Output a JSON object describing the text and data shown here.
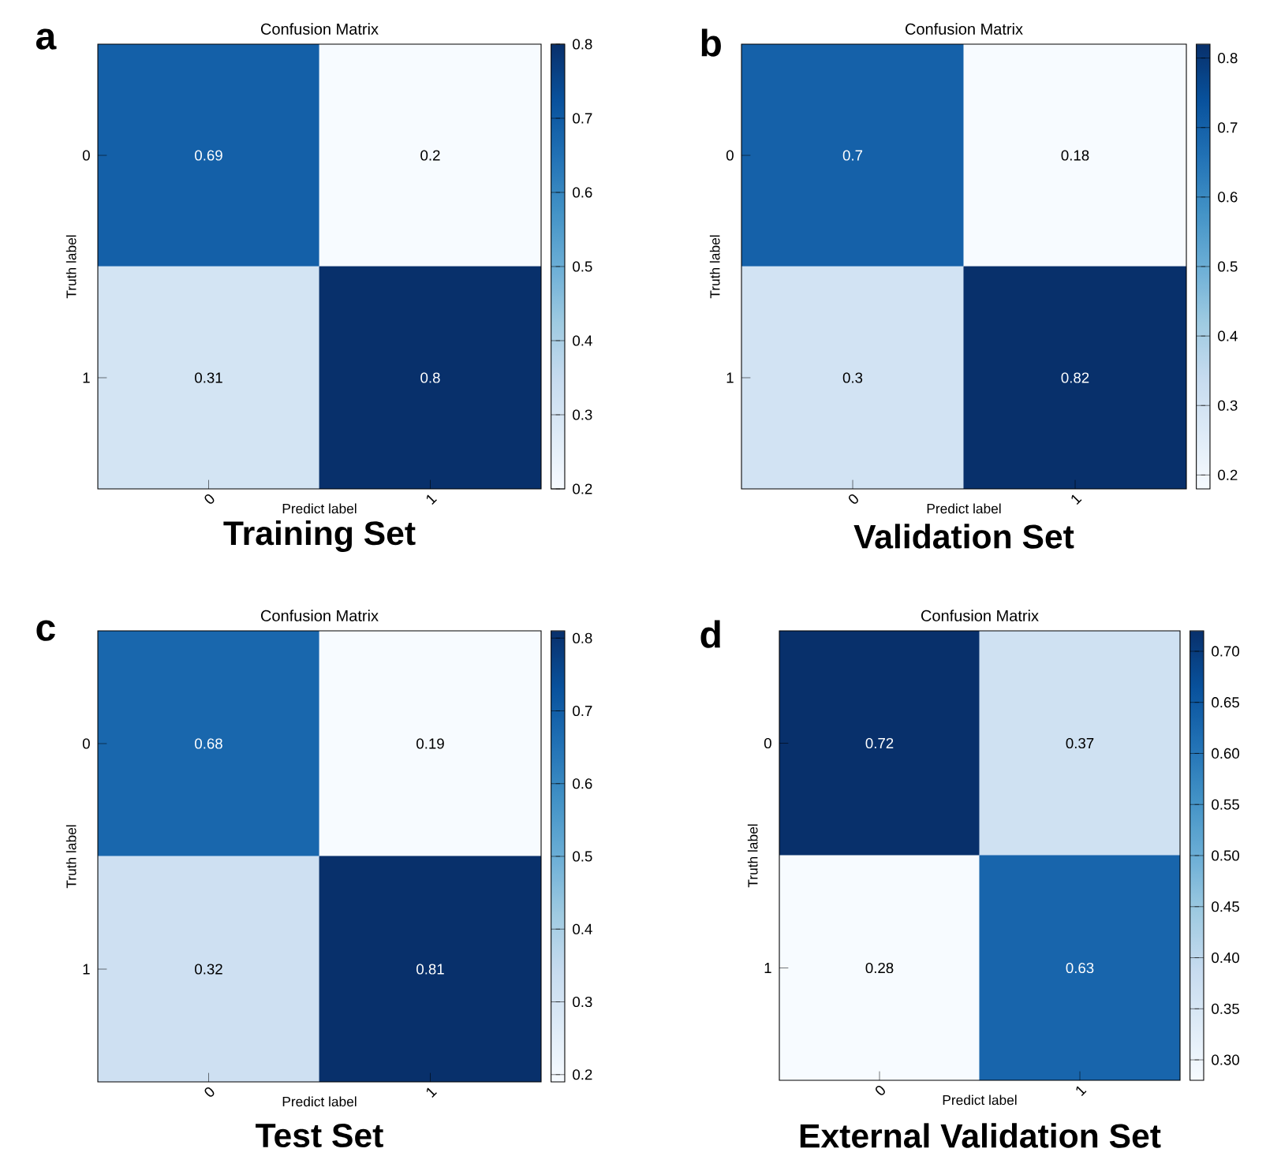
{
  "chart_data": [
    {
      "type": "heatmap",
      "title": "Confusion Matrix",
      "xlabel": "Predict label",
      "ylabel": "Truth label",
      "categories": [
        "0",
        "1"
      ],
      "y_categories": [
        "0",
        "1"
      ],
      "cells": [
        [
          0.69,
          0.2
        ],
        [
          0.31,
          0.8
        ]
      ],
      "clim": [
        0.2,
        0.8
      ],
      "cticks": [
        0.2,
        0.3,
        0.4,
        0.5,
        0.6,
        0.7,
        0.8
      ],
      "data_labels": true,
      "annotations": [
        "a",
        "Training Set"
      ]
    },
    {
      "type": "heatmap",
      "title": "Confusion Matrix",
      "xlabel": "Predict label",
      "ylabel": "Truth label",
      "categories": [
        "0",
        "1"
      ],
      "y_categories": [
        "0",
        "1"
      ],
      "cells": [
        [
          0.7,
          0.18
        ],
        [
          0.3,
          0.82
        ]
      ],
      "clim": [
        0.18,
        0.82
      ],
      "cticks": [
        0.2,
        0.3,
        0.4,
        0.5,
        0.6,
        0.7,
        0.8
      ],
      "data_labels": true,
      "annotations": [
        "b",
        "Validation Set"
      ]
    },
    {
      "type": "heatmap",
      "title": "Confusion Matrix",
      "xlabel": "Predict label",
      "ylabel": "Truth label",
      "categories": [
        "0",
        "1"
      ],
      "y_categories": [
        "0",
        "1"
      ],
      "cells": [
        [
          0.68,
          0.19
        ],
        [
          0.32,
          0.81
        ]
      ],
      "clim": [
        0.19,
        0.81
      ],
      "cticks": [
        0.2,
        0.3,
        0.4,
        0.5,
        0.6,
        0.7,
        0.8
      ],
      "data_labels": true,
      "annotations": [
        "c",
        "Test Set"
      ]
    },
    {
      "type": "heatmap",
      "title": "Confusion Matrix",
      "xlabel": "Predict label",
      "ylabel": "Truth label",
      "categories": [
        "0",
        "1"
      ],
      "y_categories": [
        "0",
        "1"
      ],
      "cells": [
        [
          0.72,
          0.37
        ],
        [
          0.28,
          0.63
        ]
      ],
      "clim": [
        0.28,
        0.72
      ],
      "cticks": [
        {
          "value": 0.3,
          "label": "0.30"
        },
        {
          "value": 0.35,
          "label": "0.35"
        },
        {
          "value": 0.4,
          "label": "0.40"
        },
        {
          "value": 0.45,
          "label": "0.45"
        },
        {
          "value": 0.5,
          "label": "0.50"
        },
        {
          "value": 0.55,
          "label": "0.55"
        },
        {
          "value": 0.6,
          "label": "0.60"
        },
        {
          "value": 0.65,
          "label": "0.65"
        },
        {
          "value": 0.7,
          "label": "0.70"
        }
      ],
      "data_labels": true,
      "annotations": [
        "d",
        "External Validation Set"
      ]
    }
  ]
}
